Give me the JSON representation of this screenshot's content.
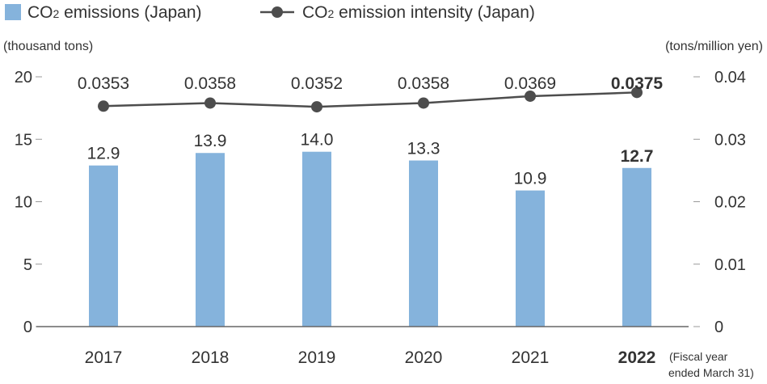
{
  "chart_data": {
    "type": "bar",
    "categories": [
      "2017",
      "2018",
      "2019",
      "2020",
      "2021",
      "2022"
    ],
    "highlight_category": "2022",
    "series": [
      {
        "name": "CO2 emissions (Japan)",
        "kind": "bar",
        "axis": "left",
        "color": "#85b3dc",
        "values": [
          12.9,
          13.9,
          14.0,
          13.3,
          10.9,
          12.7
        ],
        "labels": [
          "12.9",
          "13.9",
          "14.0",
          "13.3",
          "10.9",
          "12.7"
        ]
      },
      {
        "name": "CO2 emission intensity (Japan)",
        "kind": "line",
        "axis": "right",
        "color": "#4d4d4d",
        "values": [
          0.0353,
          0.0358,
          0.0352,
          0.0358,
          0.0369,
          0.0375
        ],
        "labels": [
          "0.0353",
          "0.0358",
          "0.0352",
          "0.0358",
          "0.0369",
          "0.0375"
        ]
      }
    ],
    "legend": {
      "placement": "top-left",
      "items": [
        {
          "prefix": "CO",
          "sub": "2",
          "suffix": " emissions (Japan)"
        },
        {
          "prefix": "CO",
          "sub": "2",
          "suffix": " emission intensity (Japan)"
        }
      ]
    },
    "y_left": {
      "unit_label": "(thousand tons)",
      "ylim": [
        0,
        20
      ],
      "ticks": [
        0,
        5,
        10,
        15,
        20
      ],
      "tick_labels": [
        "0",
        "5",
        "10",
        "15",
        "20"
      ]
    },
    "y_right": {
      "unit_label": "(tons/million yen)",
      "ylim": [
        0,
        0.04
      ],
      "ticks": [
        0,
        0.01,
        0.02,
        0.03,
        0.04
      ],
      "tick_labels": [
        "0",
        "0.01",
        "0.02",
        "0.03",
        "0.04"
      ]
    },
    "x_note": [
      "(Fiscal year",
      "ended March 31)"
    ],
    "grid": false
  }
}
